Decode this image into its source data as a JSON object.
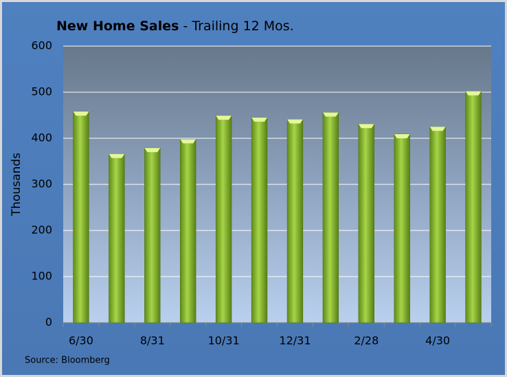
{
  "chart_data": {
    "type": "bar",
    "title": "New Home Sales",
    "subtitle": "- Trailing 12 Mos.",
    "y_label": "Thousands",
    "source": "Source: Bloomberg",
    "categories": [
      "6/30",
      null,
      "8/31",
      null,
      "10/31",
      null,
      "12/31",
      null,
      "2/28",
      null,
      "4/30",
      null
    ],
    "values": [
      458,
      366,
      379,
      398,
      449,
      445,
      441,
      456,
      431,
      409,
      425,
      502
    ],
    "color": "#8fbf2e",
    "ylim": [
      0,
      600
    ],
    "yticks": [
      0,
      100,
      200,
      300,
      400,
      500,
      600
    ],
    "grid": true
  }
}
